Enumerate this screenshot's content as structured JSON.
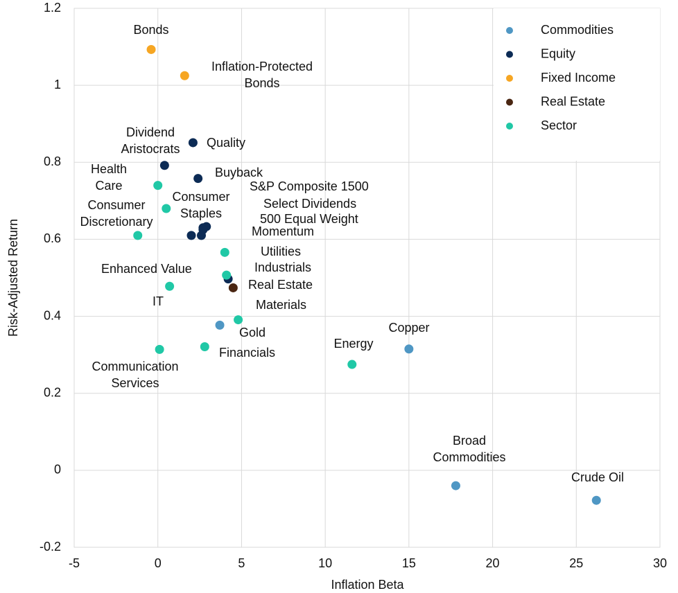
{
  "chart_data": {
    "type": "scatter",
    "x_label": "Inflation Beta",
    "y_label": "Risk-Adjusted Return",
    "xlim": [
      -5,
      30
    ],
    "xticks": [
      -5,
      0,
      5,
      10,
      15,
      20,
      25,
      30
    ],
    "ylim": [
      -0.2,
      1.2
    ],
    "yticks": [
      -0.2,
      0,
      0.2,
      0.4,
      0.6,
      0.8,
      1,
      1.2
    ],
    "grid": true,
    "legend": "top-right",
    "series": [
      {
        "name": "Commodities",
        "color": "#4f97c4",
        "labels": [
          "Gold",
          "Copper",
          "Broad Commodities",
          "Crude Oil"
        ],
        "x": [
          3.7,
          15,
          17.8,
          26.2
        ],
        "values": [
          0.377,
          0.315,
          -0.04,
          -0.078
        ]
      },
      {
        "name": "Equity",
        "color": "#0c2b55",
        "labels": [
          "Dividend Aristocrats",
          "Quality",
          "Buyback",
          "S&P Composite 1500",
          "Select Dividends",
          "500 Equal Weight",
          "Momentum",
          null,
          "Enhanced Value"
        ],
        "x": [
          0.4,
          2.1,
          2.4,
          2.9,
          2.7,
          2.7,
          2.6,
          2.0,
          4.2
        ],
        "values": [
          0.792,
          0.851,
          0.758,
          0.633,
          0.63,
          0.625,
          0.61,
          0.61,
          0.497
        ]
      },
      {
        "name": "Fixed Income",
        "color": "#f6a623",
        "labels": [
          "Bonds",
          "Inflation-Protected Bonds"
        ],
        "x": [
          -0.4,
          1.6
        ],
        "values": [
          1.093,
          1.025
        ]
      },
      {
        "name": "Real Estate",
        "color": "#4a2612",
        "labels": [
          "Real Estate"
        ],
        "x": [
          4.5
        ],
        "values": [
          0.474
        ]
      },
      {
        "name": "Sector",
        "color": "#20c8a6",
        "labels": [
          "Health Care",
          "Consumer Staples",
          "Consumer Discretionary",
          "Utilities",
          "Industrials",
          "IT",
          "Materials",
          "Financials",
          "Communication Services",
          "Energy"
        ],
        "x": [
          0,
          0.5,
          -1.2,
          4.0,
          4.1,
          0.7,
          4.8,
          2.8,
          0.1,
          11.6
        ],
        "values": [
          0.74,
          0.68,
          0.61,
          0.566,
          0.507,
          0.478,
          0.391,
          0.321,
          0.314,
          0.275
        ]
      }
    ]
  }
}
